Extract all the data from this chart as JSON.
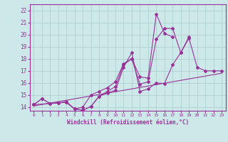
{
  "xlabel": "Windchill (Refroidissement éolien,°C)",
  "bg_color": "#cce8e8",
  "grid_color": "#aacccc",
  "line_color": "#993399",
  "xlim": [
    -0.5,
    23.5
  ],
  "ylim": [
    13.7,
    22.5
  ],
  "yticks": [
    14,
    15,
    16,
    17,
    18,
    19,
    20,
    21,
    22
  ],
  "xticks": [
    0,
    1,
    2,
    3,
    4,
    5,
    6,
    7,
    8,
    9,
    10,
    11,
    12,
    13,
    14,
    15,
    16,
    17,
    18,
    19,
    20,
    21,
    22,
    23
  ],
  "series1_x": [
    0,
    1,
    2,
    3,
    4,
    5,
    6,
    7,
    8,
    9,
    10,
    11,
    12,
    13,
    14,
    15,
    16,
    17,
    18,
    19,
    20,
    21,
    22,
    23
  ],
  "series1_y": [
    14.2,
    14.7,
    14.3,
    14.35,
    14.4,
    13.85,
    13.75,
    14.05,
    14.9,
    15.15,
    15.4,
    17.3,
    18.5,
    15.3,
    15.5,
    16.0,
    15.95,
    17.5,
    18.5,
    19.7,
    17.3,
    17.0,
    17.0,
    17.0
  ],
  "series2_x": [
    0,
    1,
    2,
    3,
    4,
    5,
    6,
    7,
    8,
    9,
    10,
    11,
    12,
    13,
    14,
    15,
    16,
    17,
    18,
    19
  ],
  "series2_y": [
    14.2,
    14.7,
    14.3,
    14.35,
    14.45,
    13.85,
    14.0,
    15.0,
    15.3,
    15.6,
    16.1,
    17.6,
    18.0,
    15.9,
    16.1,
    19.6,
    20.5,
    20.5,
    18.5,
    19.8
  ],
  "series3_x": [
    0,
    4,
    5,
    6,
    7,
    8,
    9,
    10,
    11,
    12,
    13,
    14,
    15,
    16,
    17
  ],
  "series3_y": [
    14.2,
    14.4,
    13.85,
    13.75,
    14.05,
    14.9,
    15.3,
    15.7,
    17.5,
    18.0,
    16.5,
    16.4,
    21.7,
    20.1,
    19.8
  ],
  "trend_x": [
    0,
    23
  ],
  "trend_y": [
    14.1,
    16.8
  ]
}
